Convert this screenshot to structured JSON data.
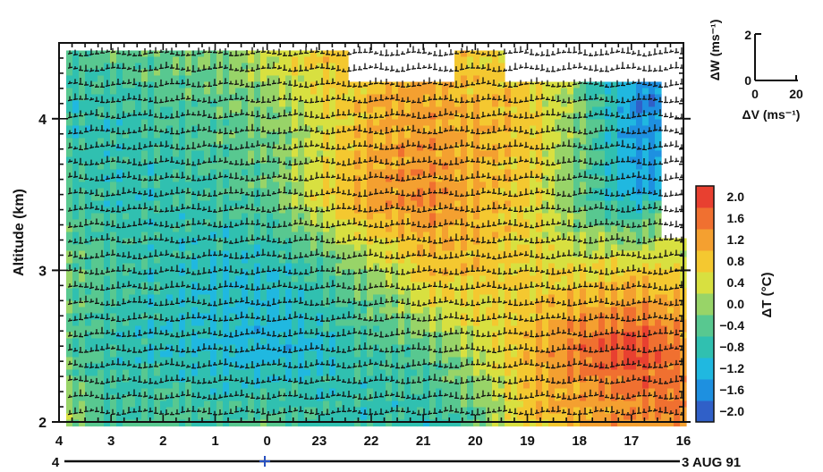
{
  "chart_data": {
    "type": "heatmap",
    "title": "",
    "ylabel": "Altitude (km)",
    "ylim": [
      2,
      4.5
    ],
    "y_ticks": [
      "2",
      "3",
      "4"
    ],
    "x_ticks": [
      "4",
      "3",
      "2",
      "1",
      "0",
      "23",
      "22",
      "21",
      "20",
      "19",
      "18",
      "17",
      "16"
    ],
    "time_axis": {
      "start_label": "4",
      "end_label": "3 AUG 91"
    },
    "colorbar": {
      "label": "ΔT (°C)",
      "range": [
        -2.2,
        2.2
      ],
      "tick_labels": [
        "2.0",
        "1.6",
        "1.2",
        "0.8",
        "0.4",
        "0.0",
        "−0.4",
        "−0.8",
        "−1.2",
        "−1.6",
        "−2.0"
      ],
      "colors": [
        "#3060c8",
        "#1e90e0",
        "#20b8e0",
        "#30c0b0",
        "#58c890",
        "#98d468",
        "#d8e040",
        "#f4c830",
        "#f4a030",
        "#f07030",
        "#e84030"
      ]
    },
    "wind_scale": {
      "xlabel": "ΔV (ms⁻¹)",
      "ylabel": "ΔW (ms⁻¹)",
      "x_ticks": [
        "0",
        "20"
      ],
      "y_ticks": [
        "0",
        "2"
      ]
    },
    "temperature_anomaly_grid": {
      "hour_index": [
        0,
        1,
        2,
        3,
        4,
        5,
        6,
        7,
        8,
        9,
        10,
        11,
        12
      ],
      "altitude_km": [
        2.0,
        2.5,
        3.0,
        3.5,
        4.0,
        4.5
      ],
      "dT": [
        [
          0.2,
          -0.6,
          -0.4,
          -0.6,
          -0.4,
          -0.7,
          -0.8,
          -0.8,
          -0.4,
          0.8,
          1.0,
          1.2,
          1.6
        ],
        [
          -0.4,
          -0.8,
          -0.9,
          -1.1,
          -1.2,
          -1.0,
          -0.6,
          -0.4,
          0.3,
          1.0,
          1.6,
          2.0,
          1.4
        ],
        [
          -0.2,
          -0.6,
          -0.8,
          -1.0,
          -1.0,
          -0.6,
          0.0,
          0.8,
          0.8,
          0.6,
          0.6,
          0.8,
          0.6
        ],
        [
          -0.5,
          -0.8,
          -0.8,
          -0.6,
          -0.4,
          0.6,
          1.2,
          1.4,
          1.0,
          0.6,
          -0.4,
          -1.2,
          null
        ],
        [
          -0.8,
          -0.8,
          -0.6,
          -0.4,
          -0.2,
          0.4,
          1.0,
          1.2,
          1.0,
          0.8,
          -0.2,
          -1.6,
          null
        ],
        [
          -0.6,
          -0.4,
          -0.2,
          -0.2,
          0.4,
          0.8,
          null,
          null,
          0.6,
          null,
          null,
          null,
          null
        ]
      ]
    }
  }
}
